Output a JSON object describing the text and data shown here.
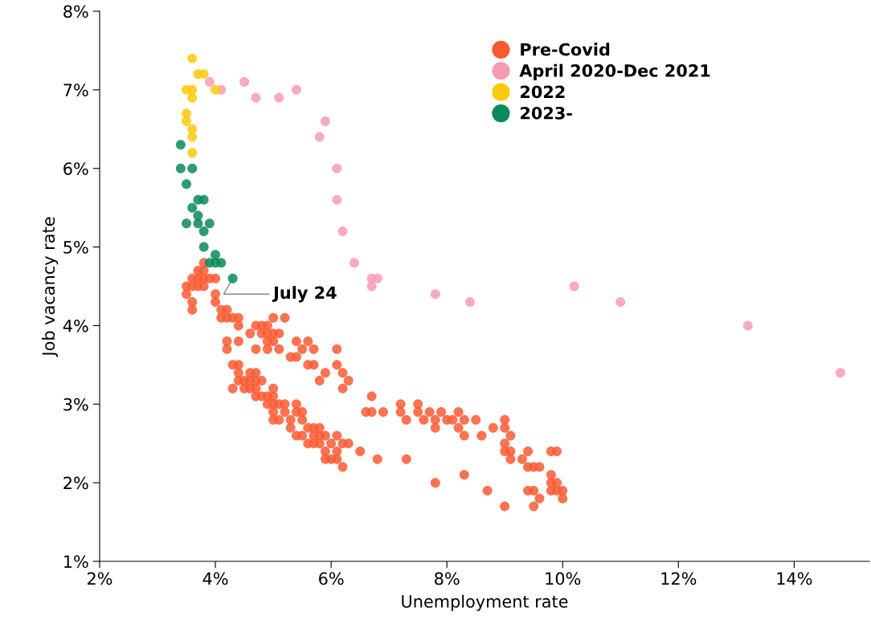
{
  "chart_data": {
    "type": "scatter",
    "xlabel": "Unemployment rate",
    "ylabel": "Job vacancy rate",
    "xlim": [
      2,
      15.3
    ],
    "ylim": [
      1,
      8
    ],
    "xticks": [
      {
        "value": 2,
        "label": "2%"
      },
      {
        "value": 4,
        "label": "4%"
      },
      {
        "value": 6,
        "label": "6%"
      },
      {
        "value": 8,
        "label": "8%"
      },
      {
        "value": 10,
        "label": "10%"
      },
      {
        "value": 12,
        "label": "12%"
      },
      {
        "value": 14,
        "label": "14%"
      }
    ],
    "yticks": [
      {
        "value": 1,
        "label": "1%"
      },
      {
        "value": 2,
        "label": "2%"
      },
      {
        "value": 3,
        "label": "3%"
      },
      {
        "value": 4,
        "label": "4%"
      },
      {
        "value": 5,
        "label": "5%"
      },
      {
        "value": 6,
        "label": "6%"
      },
      {
        "value": 7,
        "label": "7%"
      },
      {
        "value": 8,
        "label": "8%"
      }
    ],
    "grid": false,
    "legend": "top",
    "marker": "circle",
    "annotations": [
      {
        "text": "July 24",
        "x": 4.3,
        "y": 4.6
      }
    ],
    "series": [
      {
        "name": "Pre-Covid",
        "color": "#fa5a32",
        "x": [
          3.5,
          3.5,
          3.6,
          3.6,
          3.6,
          3.6,
          3.7,
          3.7,
          3.7,
          3.8,
          3.8,
          3.8,
          3.8,
          3.9,
          4.0,
          4.0,
          4.0,
          4.1,
          4.1,
          4.2,
          4.2,
          4.3,
          4.4,
          4.4,
          4.2,
          4.2,
          4.4,
          4.3,
          4.4,
          4.4,
          4.3,
          4.4,
          4.5,
          4.5,
          4.6,
          4.6,
          4.6,
          4.7,
          4.7,
          4.7,
          4.7,
          4.8,
          4.8,
          4.6,
          4.7,
          4.7,
          4.8,
          4.8,
          4.9,
          4.9,
          4.9,
          5.0,
          5.0,
          5.0,
          5.1,
          5.1,
          4.9,
          5.2,
          5.3,
          5.4,
          5.4,
          5.5,
          5.6,
          5.6,
          5.7,
          5.7,
          5.8,
          5.9,
          6.1,
          6.1,
          6.2,
          6.3,
          6.2,
          4.9,
          4.9,
          5.0,
          5.0,
          5.0,
          5.0,
          5.0,
          5.1,
          5.1,
          5.2,
          5.2,
          5.3,
          5.3,
          5.4,
          5.4,
          5.4,
          5.5,
          5.5,
          5.5,
          5.6,
          5.6,
          5.7,
          5.7,
          5.7,
          5.8,
          5.8,
          5.8,
          5.9,
          5.9,
          5.9,
          6.0,
          6.0,
          6.1,
          6.1,
          6.1,
          6.2,
          6.2,
          6.3,
          6.5,
          6.6,
          6.7,
          6.7,
          6.8,
          6.9,
          7.2,
          7.2,
          7.3,
          7.3,
          7.5,
          7.5,
          7.6,
          7.7,
          7.8,
          7.8,
          7.9,
          8.0,
          8.1,
          8.2,
          8.2,
          8.3,
          8.3,
          8.5,
          8.6,
          8.8,
          9.0,
          9.0,
          9.0,
          9.0,
          9.1,
          9.1,
          9.1,
          9.3,
          9.4,
          9.4,
          9.5,
          9.6,
          9.4,
          9.5,
          9.5,
          9.6,
          9.8,
          9.9,
          9.8,
          9.8,
          9.8,
          9.9,
          9.9,
          10.0,
          10.0,
          9.0,
          8.7,
          8.3,
          7.8
        ],
        "values": [
          4.5,
          4.4,
          4.6,
          4.5,
          4.3,
          4.2,
          4.6,
          4.5,
          4.7,
          4.8,
          4.6,
          4.5,
          4.7,
          4.6,
          4.6,
          4.4,
          4.3,
          4.2,
          4.1,
          4.1,
          4.2,
          4.1,
          4.1,
          4.0,
          3.8,
          3.7,
          3.8,
          3.5,
          3.5,
          3.4,
          3.2,
          3.3,
          3.3,
          3.2,
          3.3,
          3.4,
          3.2,
          3.4,
          3.3,
          3.2,
          3.1,
          3.3,
          3.1,
          3.9,
          4.0,
          3.7,
          4.0,
          3.9,
          3.9,
          3.8,
          3.7,
          3.9,
          3.8,
          4.1,
          3.9,
          3.7,
          4.0,
          4.1,
          3.6,
          3.8,
          3.6,
          3.7,
          3.8,
          3.5,
          3.7,
          3.5,
          3.3,
          3.4,
          3.7,
          3.5,
          3.4,
          3.3,
          3.2,
          3.0,
          3.1,
          3.2,
          3.1,
          3.0,
          2.9,
          2.8,
          2.8,
          3.0,
          2.9,
          3.0,
          2.8,
          2.7,
          3.0,
          2.9,
          2.6,
          2.9,
          2.8,
          2.6,
          2.7,
          2.5,
          2.6,
          2.7,
          2.5,
          2.7,
          2.6,
          2.5,
          2.6,
          2.4,
          2.3,
          2.5,
          2.3,
          2.6,
          2.4,
          2.3,
          2.5,
          2.2,
          2.5,
          2.4,
          2.9,
          3.1,
          2.9,
          2.3,
          2.9,
          3.0,
          2.9,
          2.8,
          2.3,
          3.0,
          2.9,
          2.8,
          2.9,
          2.8,
          2.7,
          2.9,
          2.8,
          2.8,
          2.9,
          2.7,
          2.8,
          2.6,
          2.8,
          2.6,
          2.7,
          2.8,
          2.7,
          2.5,
          2.4,
          2.6,
          2.4,
          2.3,
          2.3,
          2.4,
          2.2,
          2.2,
          2.2,
          1.9,
          1.9,
          1.7,
          1.8,
          2.4,
          2.4,
          2.1,
          2.0,
          1.9,
          1.9,
          2.0,
          1.9,
          1.8,
          1.7,
          1.9,
          2.1,
          2.0
        ]
      },
      {
        "name": "April 2020-Dec 2021",
        "color": "#f79bb5",
        "x": [
          3.9,
          4.1,
          4.5,
          4.7,
          5.1,
          5.4,
          5.9,
          5.8,
          6.1,
          6.1,
          6.2,
          6.4,
          6.7,
          6.8,
          6.7,
          7.8,
          8.4,
          10.2,
          11.0,
          13.2,
          14.8
        ],
        "values": [
          7.1,
          7.0,
          7.1,
          6.9,
          6.9,
          7.0,
          6.6,
          6.4,
          6.0,
          5.6,
          5.2,
          4.8,
          4.6,
          4.6,
          4.5,
          4.4,
          4.3,
          4.5,
          4.3,
          4.0,
          3.4
        ]
      },
      {
        "name": "2022",
        "color": "#fcc90d",
        "x": [
          3.6,
          3.7,
          3.8,
          3.5,
          3.6,
          4.0,
          3.6,
          3.5,
          3.5,
          3.6,
          3.6,
          3.6
        ],
        "values": [
          7.4,
          7.2,
          7.2,
          7.0,
          7.0,
          7.0,
          6.9,
          6.7,
          6.6,
          6.5,
          6.4,
          6.2
        ]
      },
      {
        "name": "2023-",
        "color": "#0a8a5a",
        "x": [
          3.4,
          3.4,
          3.6,
          3.5,
          3.7,
          3.8,
          3.6,
          3.7,
          3.7,
          3.5,
          3.9,
          3.8,
          3.8,
          4.0,
          3.9,
          4.0,
          4.1,
          4.3
        ],
        "values": [
          6.3,
          6.0,
          6.0,
          5.8,
          5.6,
          5.6,
          5.5,
          5.4,
          5.3,
          5.3,
          5.3,
          5.2,
          5.0,
          4.9,
          4.8,
          4.8,
          4.8,
          4.6
        ]
      }
    ]
  }
}
